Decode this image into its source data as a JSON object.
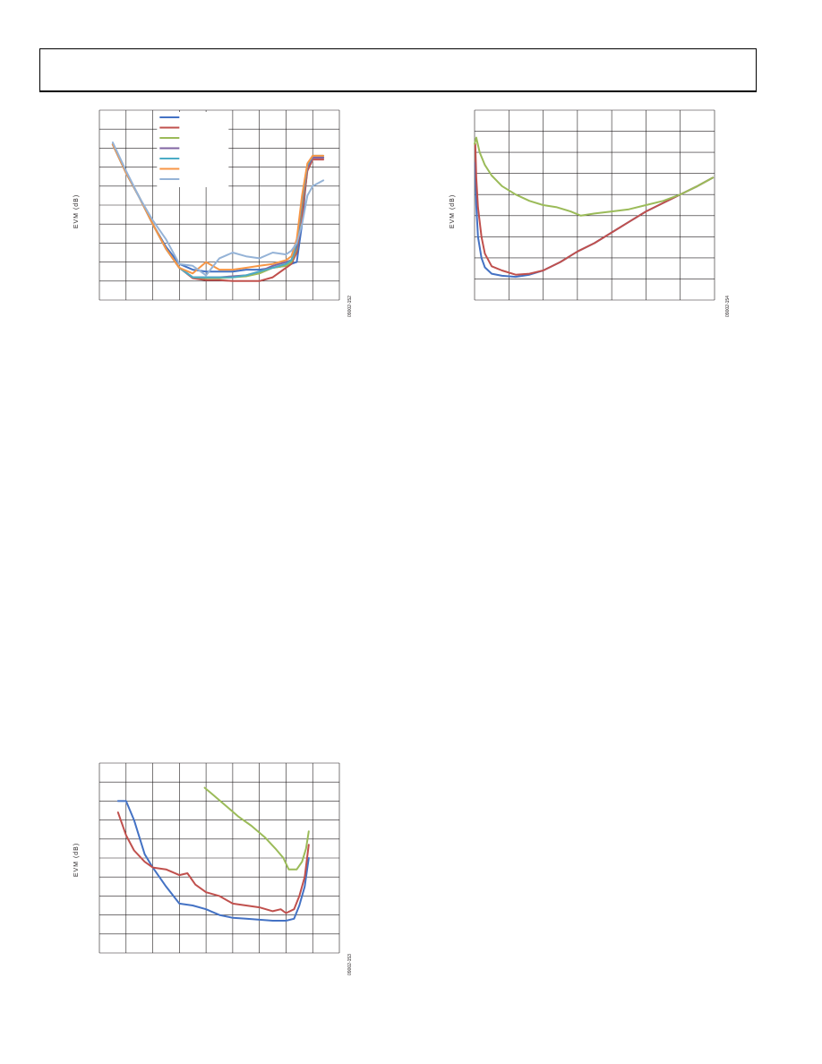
{
  "page": {
    "header": ""
  },
  "chart_data": [
    {
      "id": "chart1",
      "type": "line",
      "title": "",
      "xlabel": "",
      "ylabel": "EVM (dB)",
      "figure_id": "09002-152",
      "xlim": [
        0,
        9
      ],
      "ylim": [
        -10,
        0
      ],
      "grid": true,
      "legend": {
        "placement": "top-left",
        "entries": [
          "",
          "",
          "",
          "",
          "",
          "",
          ""
        ]
      },
      "series": [
        {
          "color": "#4472c4",
          "points": [
            [
              0.5,
              -1.8
            ],
            [
              1,
              -3.3
            ],
            [
              1.5,
              -4.6
            ],
            [
              2,
              -6.0
            ],
            [
              2.5,
              -7.2
            ],
            [
              3,
              -8.1
            ],
            [
              3.5,
              -8.4
            ],
            [
              4,
              -8.5
            ],
            [
              4.5,
              -8.5
            ],
            [
              5,
              -8.5
            ],
            [
              5.5,
              -8.4
            ],
            [
              6,
              -8.4
            ],
            [
              6.5,
              -8.3
            ],
            [
              7,
              -8.2
            ],
            [
              7.2,
              -8.1
            ],
            [
              7.4,
              -8.0
            ],
            [
              7.6,
              -6.0
            ],
            [
              7.8,
              -3.0
            ],
            [
              8,
              -2.5
            ],
            [
              8.4,
              -2.5
            ]
          ]
        },
        {
          "color": "#c0504d",
          "points": [
            [
              0.5,
              -1.8
            ],
            [
              1,
              -3.3
            ],
            [
              1.5,
              -4.6
            ],
            [
              2,
              -6.0
            ],
            [
              2.5,
              -7.3
            ],
            [
              3,
              -8.3
            ],
            [
              3.5,
              -8.85
            ],
            [
              4,
              -8.95
            ],
            [
              4.5,
              -8.95
            ],
            [
              5,
              -9.0
            ],
            [
              5.5,
              -9.0
            ],
            [
              6,
              -9.0
            ],
            [
              6.5,
              -8.8
            ],
            [
              7,
              -8.3
            ],
            [
              7.2,
              -8.1
            ],
            [
              7.4,
              -7.5
            ],
            [
              7.6,
              -5.5
            ],
            [
              7.8,
              -3.2
            ],
            [
              8,
              -2.6
            ],
            [
              8.4,
              -2.6
            ]
          ]
        },
        {
          "color": "#9bbb59",
          "points": [
            [
              0.5,
              -1.8
            ],
            [
              1,
              -3.3
            ],
            [
              1.5,
              -4.6
            ],
            [
              2,
              -6.0
            ],
            [
              2.5,
              -7.3
            ],
            [
              3,
              -8.3
            ],
            [
              3.5,
              -8.8
            ],
            [
              4,
              -8.85
            ],
            [
              4.5,
              -8.85
            ],
            [
              5,
              -8.8
            ],
            [
              5.5,
              -8.75
            ],
            [
              6,
              -8.6
            ],
            [
              6.5,
              -8.3
            ],
            [
              7,
              -8.2
            ],
            [
              7.2,
              -8.0
            ],
            [
              7.4,
              -7.3
            ],
            [
              7.6,
              -5.0
            ],
            [
              7.8,
              -3.0
            ],
            [
              8,
              -2.5
            ],
            [
              8.4,
              -2.5
            ]
          ]
        },
        {
          "color": "#8064a2",
          "points": [
            [
              0.5,
              -1.8
            ],
            [
              1,
              -3.3
            ],
            [
              1.5,
              -4.6
            ],
            [
              2,
              -6.0
            ],
            [
              2.5,
              -7.3
            ],
            [
              3,
              -8.3
            ],
            [
              3.5,
              -8.8
            ],
            [
              4,
              -8.8
            ],
            [
              4.5,
              -8.8
            ],
            [
              5,
              -8.75
            ],
            [
              5.5,
              -8.7
            ],
            [
              6,
              -8.5
            ],
            [
              6.5,
              -8.2
            ],
            [
              7,
              -8.0
            ],
            [
              7.2,
              -7.9
            ],
            [
              7.4,
              -7.2
            ],
            [
              7.6,
              -4.8
            ],
            [
              7.8,
              -3.0
            ],
            [
              8,
              -2.5
            ],
            [
              8.4,
              -2.5
            ]
          ]
        },
        {
          "color": "#4bacc6",
          "points": [
            [
              0.5,
              -1.8
            ],
            [
              1,
              -3.3
            ],
            [
              1.5,
              -4.6
            ],
            [
              2,
              -6.0
            ],
            [
              2.5,
              -7.3
            ],
            [
              3,
              -8.3
            ],
            [
              3.5,
              -8.8
            ],
            [
              4,
              -8.8
            ],
            [
              4.5,
              -8.8
            ],
            [
              5,
              -8.8
            ],
            [
              5.5,
              -8.7
            ],
            [
              6,
              -8.5
            ],
            [
              6.5,
              -8.3
            ],
            [
              7,
              -8.1
            ],
            [
              7.2,
              -7.9
            ],
            [
              7.4,
              -7.0
            ],
            [
              7.6,
              -4.6
            ],
            [
              7.8,
              -2.9
            ],
            [
              8,
              -2.4
            ],
            [
              8.4,
              -2.4
            ]
          ]
        },
        {
          "color": "#f79646",
          "points": [
            [
              0.5,
              -1.8
            ],
            [
              1,
              -3.3
            ],
            [
              1.5,
              -4.6
            ],
            [
              2,
              -6.0
            ],
            [
              2.5,
              -7.3
            ],
            [
              3,
              -8.3
            ],
            [
              3.5,
              -8.6
            ],
            [
              4,
              -8.0
            ],
            [
              4.5,
              -8.4
            ],
            [
              5,
              -8.4
            ],
            [
              5.5,
              -8.3
            ],
            [
              6,
              -8.2
            ],
            [
              6.5,
              -8.1
            ],
            [
              7,
              -7.9
            ],
            [
              7.2,
              -7.7
            ],
            [
              7.4,
              -6.8
            ],
            [
              7.6,
              -4.5
            ],
            [
              7.8,
              -2.8
            ],
            [
              8,
              -2.4
            ],
            [
              8.4,
              -2.4
            ]
          ]
        },
        {
          "color": "#95b3d7",
          "points": [
            [
              0.5,
              -1.7
            ],
            [
              1,
              -3.2
            ],
            [
              1.5,
              -4.6
            ],
            [
              2,
              -5.8
            ],
            [
              2.5,
              -6.8
            ],
            [
              3,
              -8.1
            ],
            [
              3.5,
              -8.2
            ],
            [
              4,
              -8.7
            ],
            [
              4.5,
              -7.8
            ],
            [
              5,
              -7.5
            ],
            [
              5.5,
              -7.7
            ],
            [
              6,
              -7.8
            ],
            [
              6.5,
              -7.5
            ],
            [
              7,
              -7.6
            ],
            [
              7.2,
              -7.4
            ],
            [
              7.4,
              -7.0
            ],
            [
              7.6,
              -6.0
            ],
            [
              7.8,
              -4.5
            ],
            [
              8,
              -4.0
            ],
            [
              8.4,
              -3.7
            ]
          ]
        }
      ]
    },
    {
      "id": "chart2",
      "type": "line",
      "title": "",
      "xlabel": "",
      "ylabel": "EVM (dB)",
      "figure_id": "09002-154",
      "xlim": [
        0,
        7
      ],
      "ylim": [
        -9,
        0
      ],
      "grid": true,
      "series": [
        {
          "color": "#4472c4",
          "points": [
            [
              0.02,
              -2.5
            ],
            [
              0.05,
              -4.5
            ],
            [
              0.1,
              -6.0
            ],
            [
              0.2,
              -7.0
            ],
            [
              0.3,
              -7.45
            ],
            [
              0.5,
              -7.75
            ],
            [
              0.8,
              -7.85
            ],
            [
              1.2,
              -7.9
            ],
            [
              1.6,
              -7.8
            ],
            [
              2,
              -7.6
            ],
            [
              2.5,
              -7.2
            ],
            [
              3,
              -6.7
            ],
            [
              3.5,
              -6.3
            ],
            [
              4,
              -5.8
            ],
            [
              4.5,
              -5.3
            ],
            [
              5,
              -4.8
            ],
            [
              5.5,
              -4.4
            ],
            [
              6,
              -4.0
            ],
            [
              6.5,
              -3.6
            ],
            [
              6.95,
              -3.2
            ]
          ]
        },
        {
          "color": "#c0504d",
          "points": [
            [
              0.02,
              -1.6
            ],
            [
              0.05,
              -3.2
            ],
            [
              0.1,
              -4.6
            ],
            [
              0.2,
              -6.0
            ],
            [
              0.3,
              -6.8
            ],
            [
              0.5,
              -7.4
            ],
            [
              0.8,
              -7.6
            ],
            [
              1.2,
              -7.8
            ],
            [
              1.6,
              -7.75
            ],
            [
              2,
              -7.6
            ],
            [
              2.5,
              -7.2
            ],
            [
              3,
              -6.7
            ],
            [
              3.5,
              -6.3
            ],
            [
              4,
              -5.8
            ],
            [
              4.5,
              -5.3
            ],
            [
              5,
              -4.8
            ],
            [
              5.5,
              -4.4
            ],
            [
              6,
              -4.0
            ],
            [
              6.5,
              -3.6
            ],
            [
              6.95,
              -3.2
            ]
          ]
        },
        {
          "color": "#9bbb59",
          "points": [
            [
              0.0,
              -1.6
            ],
            [
              0.05,
              -1.3
            ],
            [
              0.15,
              -2.0
            ],
            [
              0.3,
              -2.6
            ],
            [
              0.5,
              -3.1
            ],
            [
              0.8,
              -3.6
            ],
            [
              1.2,
              -4.0
            ],
            [
              1.6,
              -4.3
            ],
            [
              2,
              -4.5
            ],
            [
              2.4,
              -4.6
            ],
            [
              2.8,
              -4.8
            ],
            [
              3.1,
              -5.0
            ],
            [
              3.5,
              -4.9
            ],
            [
              4,
              -4.8
            ],
            [
              4.5,
              -4.7
            ],
            [
              5,
              -4.5
            ],
            [
              5.5,
              -4.3
            ],
            [
              6,
              -4.0
            ],
            [
              6.5,
              -3.6
            ],
            [
              6.95,
              -3.2
            ]
          ]
        }
      ]
    },
    {
      "id": "chart3",
      "type": "line",
      "title": "",
      "xlabel": "",
      "ylabel": "EVM (dB)",
      "figure_id": "09002-153",
      "xlim": [
        0,
        9
      ],
      "ylim": [
        -10,
        0
      ],
      "grid": true,
      "series": [
        {
          "color": "#4472c4",
          "points": [
            [
              0.7,
              -2.0
            ],
            [
              1,
              -2.0
            ],
            [
              1.3,
              -3.0
            ],
            [
              1.7,
              -4.8
            ],
            [
              2,
              -5.5
            ],
            [
              2.5,
              -6.5
            ],
            [
              3,
              -7.4
            ],
            [
              3.5,
              -7.5
            ],
            [
              4,
              -7.7
            ],
            [
              4.5,
              -8.0
            ],
            [
              5,
              -8.15
            ],
            [
              5.5,
              -8.2
            ],
            [
              6,
              -8.25
            ],
            [
              6.5,
              -8.3
            ],
            [
              7,
              -8.3
            ],
            [
              7.3,
              -8.2
            ],
            [
              7.5,
              -7.5
            ],
            [
              7.7,
              -6.5
            ],
            [
              7.85,
              -5.0
            ]
          ]
        },
        {
          "color": "#c0504d",
          "points": [
            [
              0.7,
              -2.6
            ],
            [
              1,
              -3.8
            ],
            [
              1.3,
              -4.6
            ],
            [
              1.7,
              -5.2
            ],
            [
              2,
              -5.5
            ],
            [
              2.5,
              -5.6
            ],
            [
              3,
              -5.9
            ],
            [
              3.3,
              -5.8
            ],
            [
              3.6,
              -6.4
            ],
            [
              4,
              -6.8
            ],
            [
              4.5,
              -7.0
            ],
            [
              5,
              -7.4
            ],
            [
              5.5,
              -7.5
            ],
            [
              6,
              -7.6
            ],
            [
              6.5,
              -7.8
            ],
            [
              6.8,
              -7.7
            ],
            [
              7,
              -7.9
            ],
            [
              7.3,
              -7.7
            ],
            [
              7.5,
              -7.0
            ],
            [
              7.7,
              -6.0
            ],
            [
              7.85,
              -4.3
            ]
          ]
        },
        {
          "color": "#9bbb59",
          "points": [
            [
              3.95,
              -1.3
            ],
            [
              4.2,
              -1.6
            ],
            [
              4.7,
              -2.2
            ],
            [
              5.2,
              -2.8
            ],
            [
              5.7,
              -3.3
            ],
            [
              6.2,
              -3.9
            ],
            [
              6.6,
              -4.5
            ],
            [
              6.9,
              -5.0
            ],
            [
              7.1,
              -5.6
            ],
            [
              7.4,
              -5.6
            ],
            [
              7.6,
              -5.2
            ],
            [
              7.75,
              -4.5
            ],
            [
              7.85,
              -3.6
            ]
          ]
        }
      ]
    }
  ]
}
